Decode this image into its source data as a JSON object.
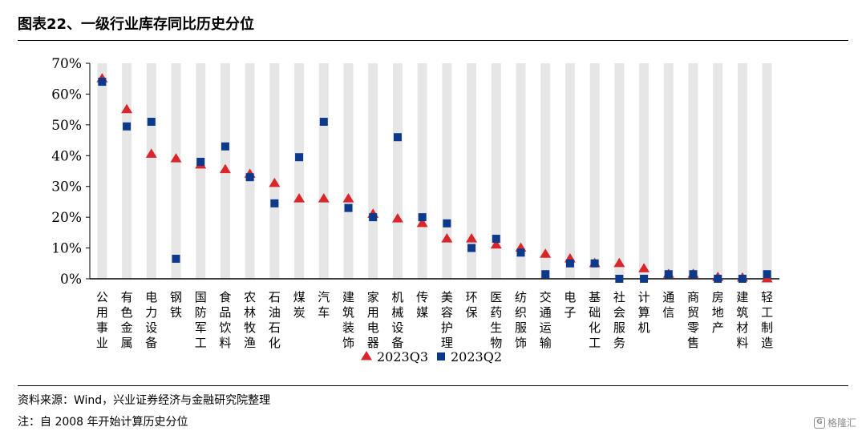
{
  "header": {
    "title": "图表22、一级行业库存同比历史分位"
  },
  "footer": {
    "source": "资料来源：Wind，兴业证券经济与金融研究院整理",
    "note": "注：自 2008 年开始计算历史分位",
    "watermark": "格隆汇"
  },
  "colors": {
    "q3": "#d9262b",
    "q2": "#0b3a8c",
    "band": "#e6e6e6"
  },
  "chart_data": {
    "type": "scatter",
    "title": "",
    "xlabel": "",
    "ylabel": "",
    "ylim": [
      0,
      70
    ],
    "yticks": [
      "0%",
      "10%",
      "20%",
      "30%",
      "40%",
      "50%",
      "60%",
      "70%"
    ],
    "categories": [
      "公用事业",
      "有色金属",
      "电力设备",
      "钢铁",
      "国防军工",
      "食品饮料",
      "农林牧渔",
      "石油石化",
      "煤炭",
      "汽车",
      "建筑装饰",
      "家用电器",
      "机械设备",
      "传媒",
      "美容护理",
      "环保",
      "医药生物",
      "纺织服饰",
      "交通运输",
      "电子",
      "基础化工",
      "社会服务",
      "计算机",
      "通信",
      "商贸零售",
      "房地产",
      "建筑材料",
      "轻工制造"
    ],
    "legend_position": "bottom",
    "series": [
      {
        "name": "2023Q3",
        "marker": "triangle",
        "values": [
          65,
          55,
          40.5,
          39,
          37,
          35.5,
          34,
          31,
          26,
          26,
          26,
          21,
          19.5,
          18,
          13,
          13,
          11,
          10,
          8,
          6.5,
          5,
          5,
          3.3,
          1.5,
          1.5,
          0.5,
          0.3,
          0
        ]
      },
      {
        "name": "2023Q2",
        "marker": "square",
        "values": [
          64,
          49.5,
          51,
          6.5,
          38,
          43,
          33,
          24.5,
          39.5,
          51,
          23,
          20,
          46,
          20,
          18,
          10,
          13,
          8.5,
          1.5,
          5,
          5,
          0,
          0,
          1.5,
          1.5,
          0,
          0,
          1.5
        ]
      }
    ]
  }
}
